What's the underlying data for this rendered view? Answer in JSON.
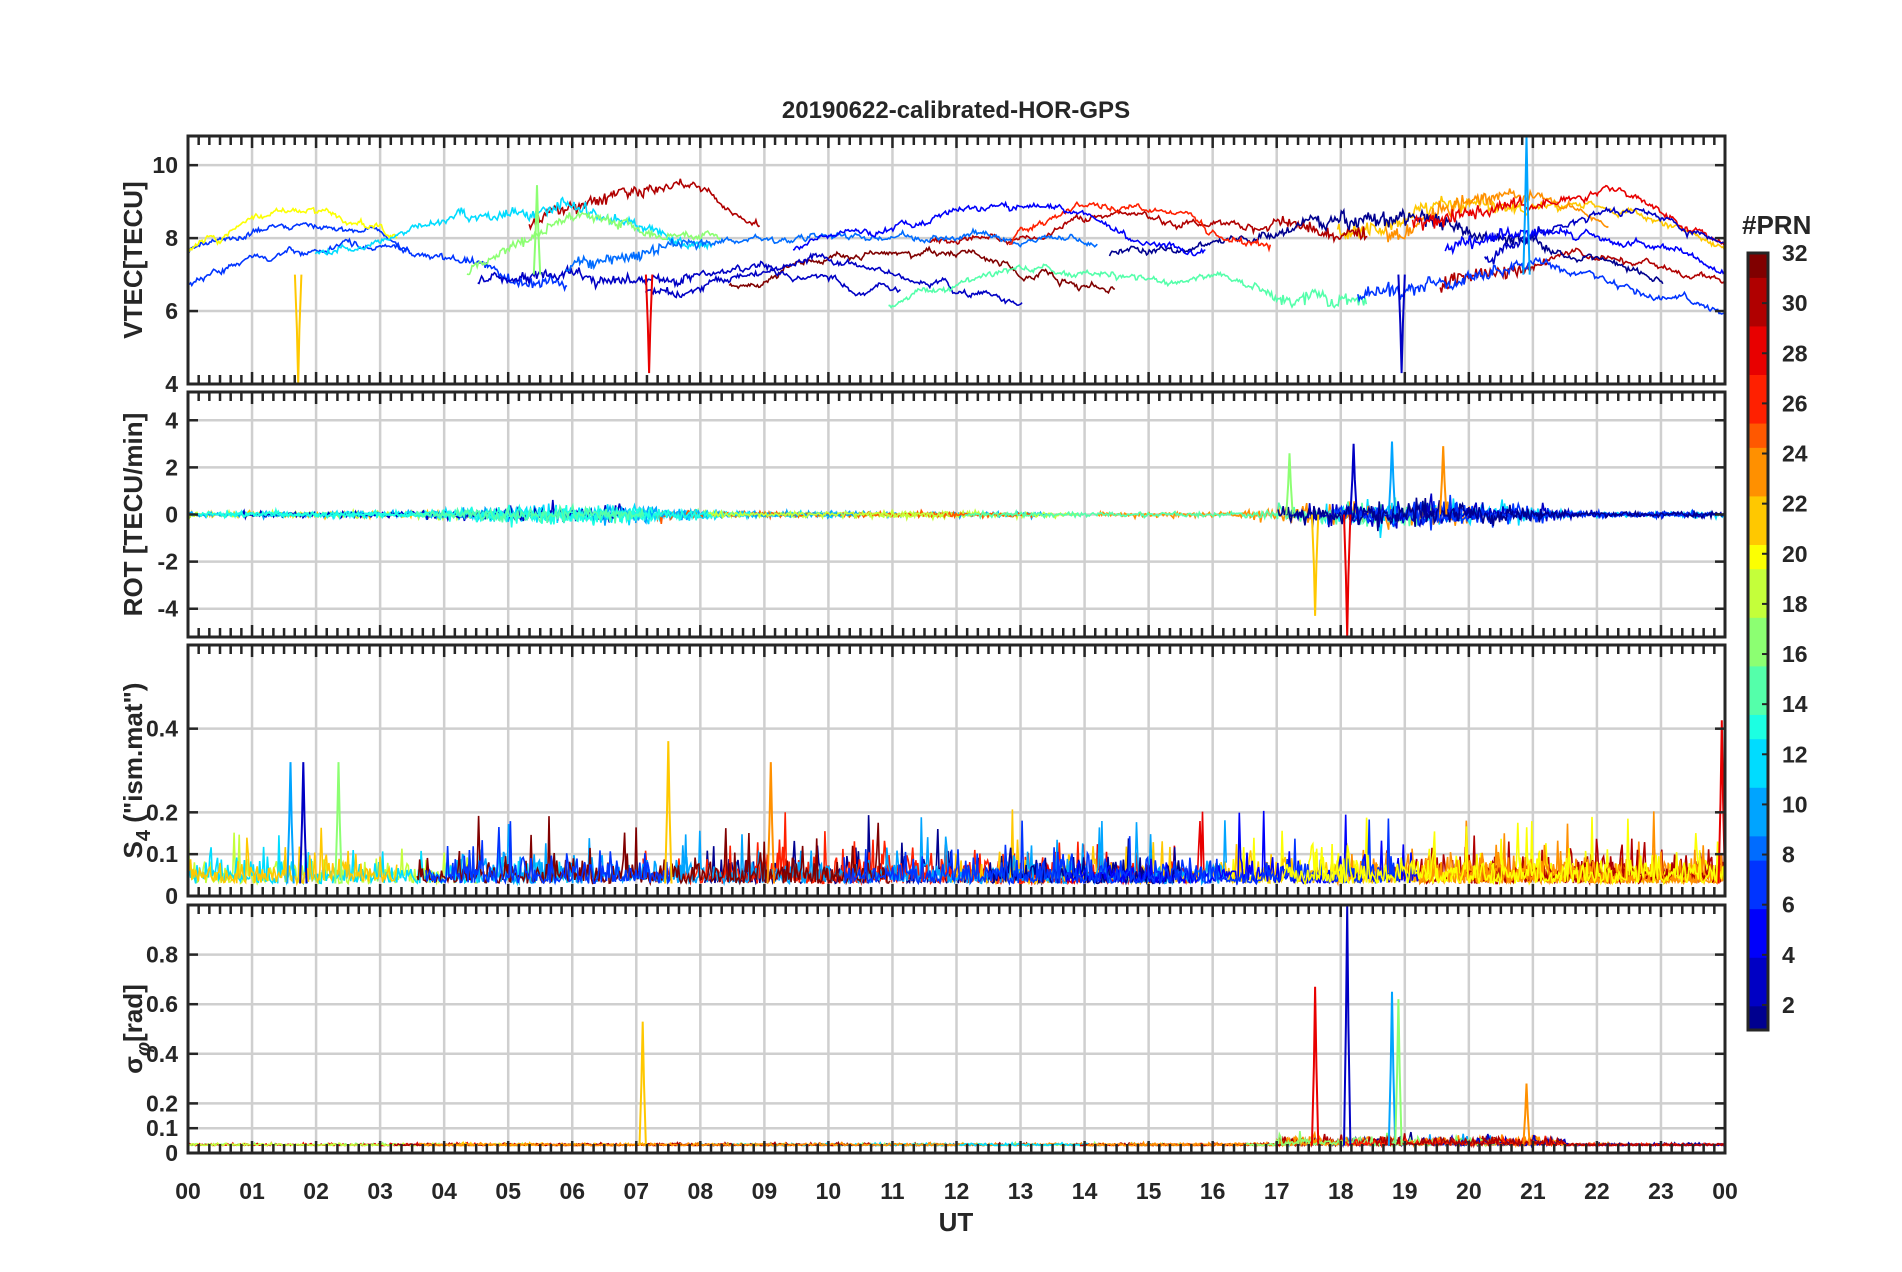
{
  "chart_data": {
    "type": "line",
    "title": "20190622-calibrated-HOR-GPS",
    "xlabel": "UT",
    "x_range": [
      0,
      24
    ],
    "x_tick_labels": [
      "00",
      "01",
      "02",
      "03",
      "04",
      "05",
      "06",
      "07",
      "08",
      "09",
      "10",
      "11",
      "12",
      "13",
      "14",
      "15",
      "16",
      "17",
      "18",
      "19",
      "20",
      "21",
      "22",
      "23",
      "00"
    ],
    "colorbar": {
      "label": "#PRN",
      "range": [
        1,
        32
      ],
      "tick_values": [
        2,
        4,
        6,
        8,
        10,
        12,
        14,
        16,
        18,
        20,
        22,
        24,
        26,
        28,
        30,
        32
      ],
      "tick_labels": [
        "2",
        "4",
        "6",
        "8",
        "10",
        "12",
        "14",
        "16",
        "18",
        "20",
        "22",
        "24",
        "26",
        "28",
        "30",
        "32"
      ],
      "colormap": "jet"
    },
    "panels": [
      {
        "id": "vtec",
        "ylabel": "VTEC[TECU]",
        "ylim": [
          4,
          10.8
        ],
        "y_ticks": [
          4,
          6,
          8,
          10
        ],
        "y_tick_labels": [
          "4",
          "6",
          "8",
          "10"
        ],
        "series_summary": "Per-PRN VTEC arcs ranging roughly 5-9.5 TECU; spike to ~10.8 near 20.9 UT; dips to ~4.0 near 01.7 UT and ~4.3 near 07.2 UT"
      },
      {
        "id": "rot",
        "ylabel": "ROT [TECU/min]",
        "ylim": [
          -5.2,
          5.2
        ],
        "y_ticks": [
          -4,
          -2,
          0,
          2,
          4
        ],
        "y_tick_labels": [
          "-4",
          "-2",
          "0",
          "2",
          "4"
        ],
        "series_summary": "Rate of TEC near 0 with enhanced fluctuations 04-08 UT (±1.5) and 16.5-21.5 UT (up to ±3, spikes to -4.3 and -5.2 near 18 UT)"
      },
      {
        "id": "s4",
        "ylabel": "S4 (\"ism.mat\")",
        "ylabel_main": "S",
        "ylabel_sub": "4",
        "ylabel_rest": " (\"ism.mat\")",
        "ylim": [
          0,
          0.6
        ],
        "y_ticks": [
          0,
          0.1,
          0.2,
          0.4
        ],
        "y_tick_labels": [
          "0",
          "0.1",
          "0.2",
          "0.4"
        ],
        "series_summary": "Amplitude scintillation index mostly 0.02-0.15, spikes to ~0.37 near 07.5 UT and ~0.42 near 23.95 UT"
      },
      {
        "id": "sigma_phi",
        "ylabel": "σφ[rad]",
        "ylabel_main": "σ",
        "ylabel_sub": "φ",
        "ylabel_rest": "[rad]",
        "ylim": [
          0,
          1.0
        ],
        "y_ticks": [
          0,
          0.1,
          0.2,
          0.4,
          0.6,
          0.8
        ],
        "y_tick_labels": [
          "0",
          "0.1",
          "0.2",
          "0.4",
          "0.6",
          "0.8"
        ],
        "series_summary": "Phase scintillation index ~0.03 baseline; spikes ~0.53 near 07.1 UT, ~0.67 near 17.6 UT, ~1.0 near 18.1 UT, ~0.65 near 18.8 UT"
      }
    ],
    "peaks": {
      "vtec": [
        [
          1.72,
          4.0
        ],
        [
          7.2,
          4.3
        ],
        [
          18.95,
          4.3
        ],
        [
          20.9,
          10.8
        ],
        [
          5.45,
          9.45
        ]
      ],
      "rot": [
        [
          17.6,
          -4.3
        ],
        [
          18.1,
          -5.2
        ],
        [
          18.2,
          3.0
        ],
        [
          18.8,
          3.1
        ],
        [
          17.2,
          2.6
        ],
        [
          19.6,
          2.9
        ]
      ],
      "s4": [
        [
          7.5,
          0.37
        ],
        [
          23.95,
          0.42
        ],
        [
          1.8,
          0.32
        ],
        [
          1.6,
          0.32
        ],
        [
          2.35,
          0.32
        ],
        [
          9.1,
          0.32
        ]
      ],
      "sigma_phi": [
        [
          7.1,
          0.53
        ],
        [
          17.6,
          0.67
        ],
        [
          18.1,
          1.0
        ],
        [
          18.8,
          0.65
        ],
        [
          18.9,
          0.62
        ],
        [
          20.9,
          0.28
        ]
      ]
    }
  }
}
